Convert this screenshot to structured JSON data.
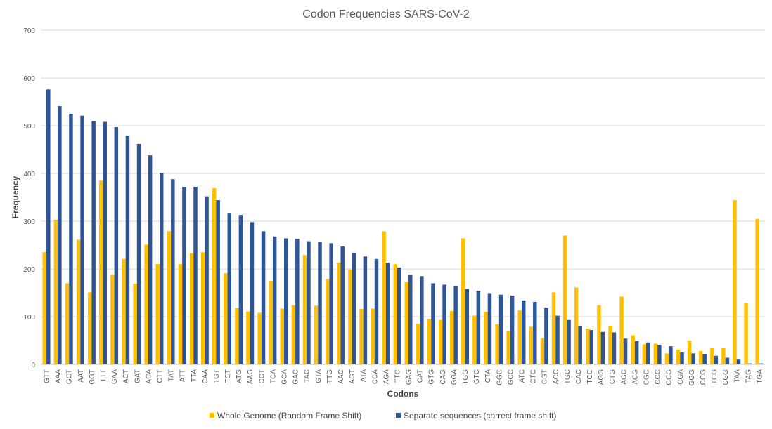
{
  "chart_data": {
    "type": "bar",
    "title": "Codon Frequencies SARS-CoV-2",
    "xlabel": "Codons",
    "ylabel": "Frequency",
    "ylim": [
      0,
      700
    ],
    "yticks": [
      0,
      100,
      200,
      300,
      400,
      500,
      600,
      700
    ],
    "grid": true,
    "legend_position": "bottom",
    "categories": [
      "GTT",
      "AAA",
      "GCT",
      "AAT",
      "GGT",
      "TTT",
      "GAA",
      "ACT",
      "GAT",
      "ACA",
      "CTT",
      "TAT",
      "ATT",
      "TTA",
      "CAA",
      "TGT",
      "TCT",
      "ATG",
      "AAG",
      "CCT",
      "TCA",
      "GCA",
      "GAC",
      "TAC",
      "GTA",
      "TTG",
      "AAC",
      "AGT",
      "ATA",
      "CCA",
      "AGA",
      "TTC",
      "GAG",
      "CAT",
      "GTG",
      "CAG",
      "GGA",
      "TGG",
      "GTC",
      "CTA",
      "GGC",
      "GCC",
      "ATC",
      "CTC",
      "CGT",
      "ACC",
      "TGC",
      "CAC",
      "TCC",
      "AGG",
      "CTG",
      "AGC",
      "ACG",
      "CGC",
      "CCC",
      "GCG",
      "CGA",
      "GGG",
      "CCG",
      "TCG",
      "CGG",
      "TAA",
      "TAG",
      "TGA"
    ],
    "series": [
      {
        "name": "Whole Genome (Random Frame Shift)",
        "color": "#FFC000",
        "values": [
          235,
          303,
          170,
          261,
          151,
          385,
          188,
          221,
          169,
          251,
          210,
          279,
          210,
          233,
          235,
          369,
          191,
          118,
          111,
          108,
          175,
          117,
          124,
          229,
          123,
          179,
          213,
          199,
          116,
          117,
          279,
          210,
          173,
          85,
          95,
          93,
          112,
          264,
          102,
          110,
          84,
          70,
          113,
          79,
          55,
          151,
          270,
          161,
          75,
          124,
          81,
          142,
          61,
          42,
          43,
          23,
          31,
          50,
          28,
          34,
          34,
          344,
          129,
          305
        ]
      },
      {
        "name": "Separate sequences (correct frame shift)",
        "color": "#2F5597",
        "values": [
          576,
          541,
          525,
          521,
          510,
          508,
          497,
          479,
          462,
          438,
          401,
          388,
          372,
          372,
          352,
          344,
          316,
          313,
          298,
          279,
          268,
          264,
          263,
          258,
          257,
          254,
          247,
          234,
          226,
          221,
          213,
          203,
          188,
          185,
          170,
          167,
          164,
          158,
          154,
          148,
          146,
          144,
          134,
          131,
          119,
          102,
          93,
          81,
          72,
          68,
          67,
          54,
          49,
          46,
          41,
          38,
          25,
          23,
          22,
          18,
          14,
          10,
          2,
          2
        ]
      }
    ]
  }
}
